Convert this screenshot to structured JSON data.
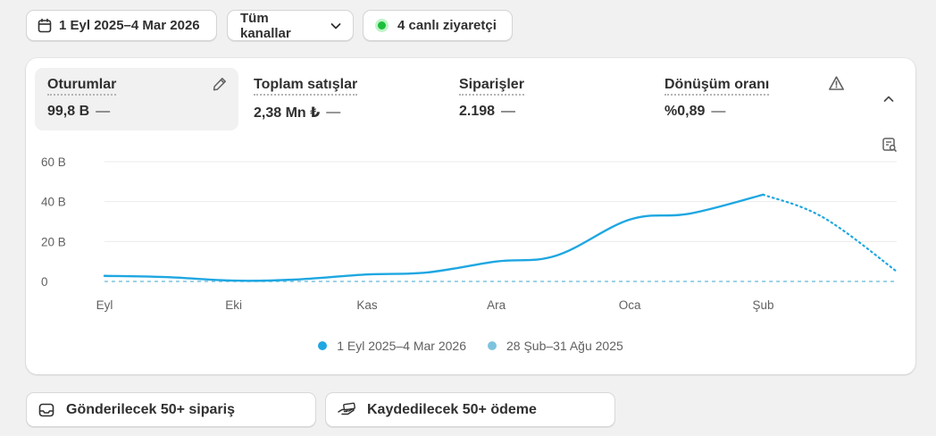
{
  "filters": {
    "date_range": "1 Eyl 2025–4 Mar 2026",
    "channels": "Tüm kanallar",
    "live_visitors": "4 canlı ziyaretçi"
  },
  "metrics": [
    {
      "label": "Oturumlar",
      "value": "99,8 B",
      "change": "—",
      "active": true
    },
    {
      "label": "Toplam satışlar",
      "value": "2,38 Mn ₺",
      "change": "—",
      "active": false
    },
    {
      "label": "Siparişler",
      "value": "2.198",
      "change": "—",
      "active": false
    },
    {
      "label": "Dönüşüm oranı",
      "value": "%0,89",
      "change": "—",
      "active": false
    }
  ],
  "chart_data": {
    "type": "line",
    "title": "",
    "xlabel": "",
    "ylabel": "",
    "y_ticks": [
      "60 B",
      "40 B",
      "20 B",
      "0"
    ],
    "x_ticks": [
      "Eyl",
      "Eki",
      "Kas",
      "Ara",
      "Oca",
      "Şub"
    ],
    "ylim": [
      0,
      60000
    ],
    "grid": true,
    "legend_position": "bottom",
    "series": [
      {
        "name": "1 Eyl 2025–4 Mar 2026",
        "color": "#1ea7e1",
        "points": [
          {
            "x": "2025-09-01",
            "y": 2800
          },
          {
            "x": "2025-09-15",
            "y": 2200
          },
          {
            "x": "2025-10-01",
            "y": 400
          },
          {
            "x": "2025-10-15",
            "y": 900
          },
          {
            "x": "2025-11-01",
            "y": 3500
          },
          {
            "x": "2025-11-15",
            "y": 4500
          },
          {
            "x": "2025-12-01",
            "y": 10000
          },
          {
            "x": "2025-12-15",
            "y": 13000
          },
          {
            "x": "2026-01-01",
            "y": 31000
          },
          {
            "x": "2026-01-15",
            "y": 34000
          },
          {
            "x": "2026-02-01",
            "y": 43500
          }
        ],
        "projected_points": [
          {
            "x": "2026-02-01",
            "y": 43500
          },
          {
            "x": "2026-02-15",
            "y": 32000
          },
          {
            "x": "2026-03-04",
            "y": 5000
          }
        ]
      },
      {
        "name": "28 Şub–31 Ağu 2025",
        "color": "#7cc4de",
        "points": [
          {
            "x": "2025-09-01",
            "y": 0
          },
          {
            "x": "2026-03-04",
            "y": 0
          }
        ]
      }
    ]
  },
  "actions": [
    {
      "label": "Gönderilecek 50+ sipariş",
      "icon": "inbox-icon"
    },
    {
      "label": "Kaydedilecek 50+ ödeme",
      "icon": "payment-hand-icon"
    }
  ]
}
